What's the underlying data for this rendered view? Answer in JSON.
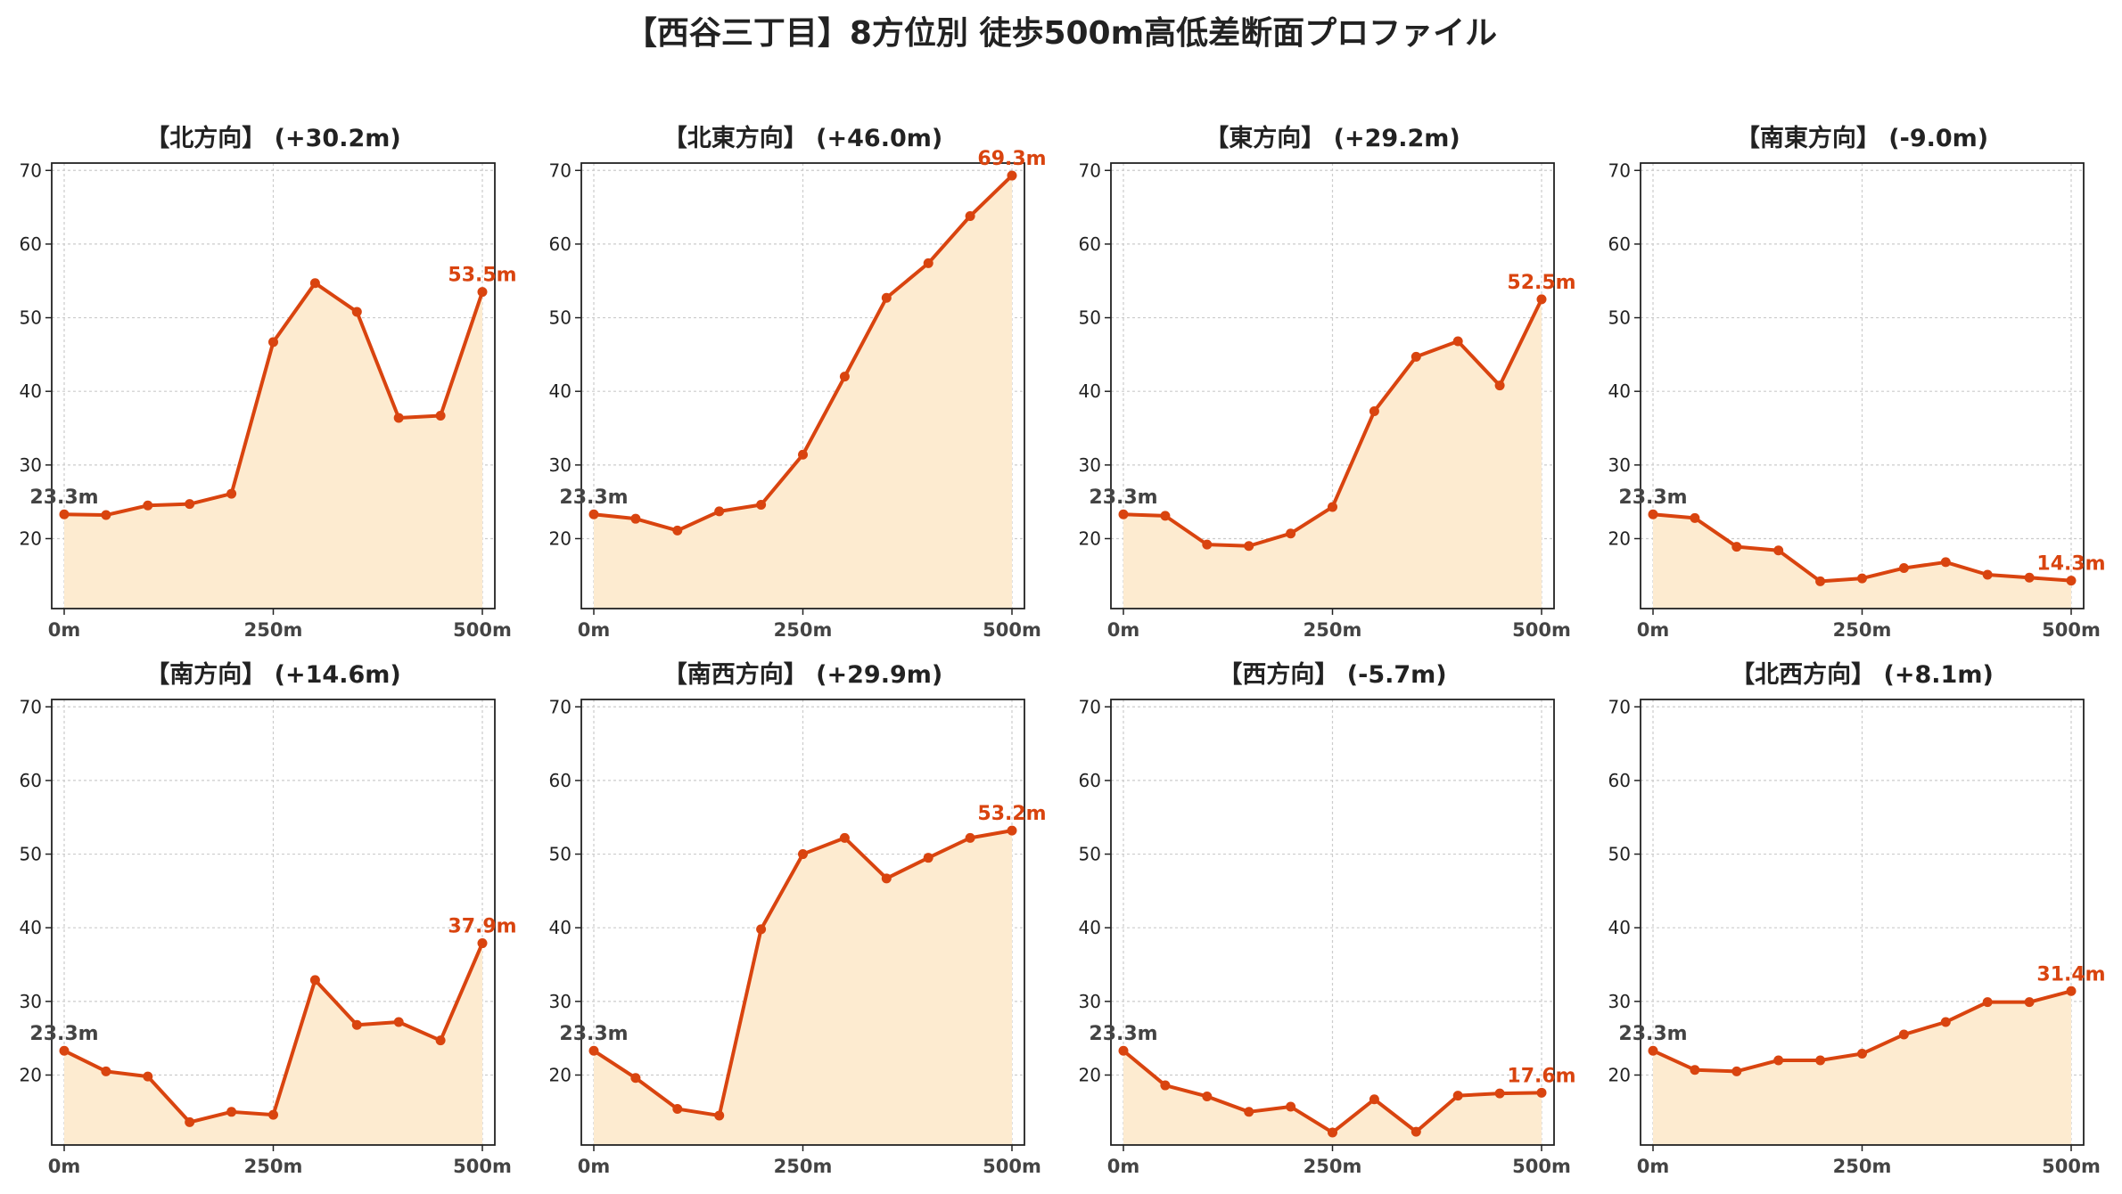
{
  "title": "【西谷三丁目】8方位別 徒歩500m高低差断面プロファイル",
  "colors": {
    "line": "#d9440f",
    "fill": "#fdebd0",
    "grid": "#cccccc",
    "start_label": "#444444"
  },
  "chart_data": [
    {
      "type": "area",
      "title": "【北方向】 (+30.2m)",
      "x": [
        0,
        50,
        100,
        150,
        200,
        250,
        300,
        350,
        400,
        450,
        500
      ],
      "values": [
        23.3,
        23.2,
        24.5,
        24.7,
        26.1,
        46.7,
        54.7,
        50.8,
        36.4,
        36.7,
        53.5
      ],
      "xticks": [
        "0m",
        "250m",
        "500m"
      ],
      "ylim": [
        10.5,
        71
      ],
      "yticks": [
        20,
        30,
        40,
        50,
        60,
        70
      ],
      "start_label": "23.3m",
      "end_label": "53.5m",
      "grid": true
    },
    {
      "type": "area",
      "title": "【北東方向】 (+46.0m)",
      "x": [
        0,
        50,
        100,
        150,
        200,
        250,
        300,
        350,
        400,
        450,
        500
      ],
      "values": [
        23.3,
        22.7,
        21.1,
        23.7,
        24.6,
        31.4,
        42.0,
        52.7,
        57.4,
        63.8,
        69.3
      ],
      "xticks": [
        "0m",
        "250m",
        "500m"
      ],
      "ylim": [
        10.5,
        71
      ],
      "yticks": [
        20,
        30,
        40,
        50,
        60,
        70
      ],
      "start_label": "23.3m",
      "end_label": "69.3m",
      "grid": true
    },
    {
      "type": "area",
      "title": "【東方向】 (+29.2m)",
      "x": [
        0,
        50,
        100,
        150,
        200,
        250,
        300,
        350,
        400,
        450,
        500
      ],
      "values": [
        23.3,
        23.1,
        19.2,
        19.0,
        20.7,
        24.3,
        37.3,
        44.7,
        46.8,
        40.8,
        52.5
      ],
      "xticks": [
        "0m",
        "250m",
        "500m"
      ],
      "ylim": [
        10.5,
        71
      ],
      "yticks": [
        20,
        30,
        40,
        50,
        60,
        70
      ],
      "start_label": "23.3m",
      "end_label": "52.5m",
      "grid": true
    },
    {
      "type": "area",
      "title": "【南東方向】 (-9.0m)",
      "x": [
        0,
        50,
        100,
        150,
        200,
        250,
        300,
        350,
        400,
        450,
        500
      ],
      "values": [
        23.3,
        22.8,
        18.9,
        18.4,
        14.2,
        14.6,
        16.0,
        16.8,
        15.1,
        14.7,
        14.3
      ],
      "xticks": [
        "0m",
        "250m",
        "500m"
      ],
      "ylim": [
        10.5,
        71
      ],
      "yticks": [
        20,
        30,
        40,
        50,
        60,
        70
      ],
      "start_label": "23.3m",
      "end_label": "14.3m",
      "grid": true
    },
    {
      "type": "area",
      "title": "【南方向】 (+14.6m)",
      "x": [
        0,
        50,
        100,
        150,
        200,
        250,
        300,
        350,
        400,
        450,
        500
      ],
      "values": [
        23.3,
        20.5,
        19.8,
        13.6,
        15.0,
        14.6,
        32.9,
        26.8,
        27.2,
        24.7,
        37.9
      ],
      "xticks": [
        "0m",
        "250m",
        "500m"
      ],
      "ylim": [
        10.5,
        71
      ],
      "yticks": [
        20,
        30,
        40,
        50,
        60,
        70
      ],
      "start_label": "23.3m",
      "end_label": "37.9m",
      "grid": true
    },
    {
      "type": "area",
      "title": "【南西方向】 (+29.9m)",
      "x": [
        0,
        50,
        100,
        150,
        200,
        250,
        300,
        350,
        400,
        450,
        500
      ],
      "values": [
        23.3,
        19.6,
        15.4,
        14.5,
        39.8,
        50.0,
        52.2,
        46.7,
        49.5,
        52.2,
        53.2
      ],
      "xticks": [
        "0m",
        "250m",
        "500m"
      ],
      "ylim": [
        10.5,
        71
      ],
      "yticks": [
        20,
        30,
        40,
        50,
        60,
        70
      ],
      "start_label": "23.3m",
      "end_label": "53.2m",
      "grid": true
    },
    {
      "type": "area",
      "title": "【西方向】 (-5.7m)",
      "x": [
        0,
        50,
        100,
        150,
        200,
        250,
        300,
        350,
        400,
        450,
        500
      ],
      "values": [
        23.3,
        18.6,
        17.1,
        15.0,
        15.7,
        12.2,
        16.7,
        12.3,
        17.2,
        17.5,
        17.6
      ],
      "xticks": [
        "0m",
        "250m",
        "500m"
      ],
      "ylim": [
        10.5,
        71
      ],
      "yticks": [
        20,
        30,
        40,
        50,
        60,
        70
      ],
      "start_label": "23.3m",
      "end_label": "17.6m",
      "grid": true
    },
    {
      "type": "area",
      "title": "【北西方向】 (+8.1m)",
      "x": [
        0,
        50,
        100,
        150,
        200,
        250,
        300,
        350,
        400,
        450,
        500
      ],
      "values": [
        23.3,
        20.7,
        20.5,
        22.0,
        22.0,
        22.9,
        25.5,
        27.2,
        29.9,
        29.9,
        31.4
      ],
      "xticks": [
        "0m",
        "250m",
        "500m"
      ],
      "ylim": [
        10.5,
        71
      ],
      "yticks": [
        20,
        30,
        40,
        50,
        60,
        70
      ],
      "start_label": "23.3m",
      "end_label": "31.4m",
      "grid": true
    }
  ]
}
